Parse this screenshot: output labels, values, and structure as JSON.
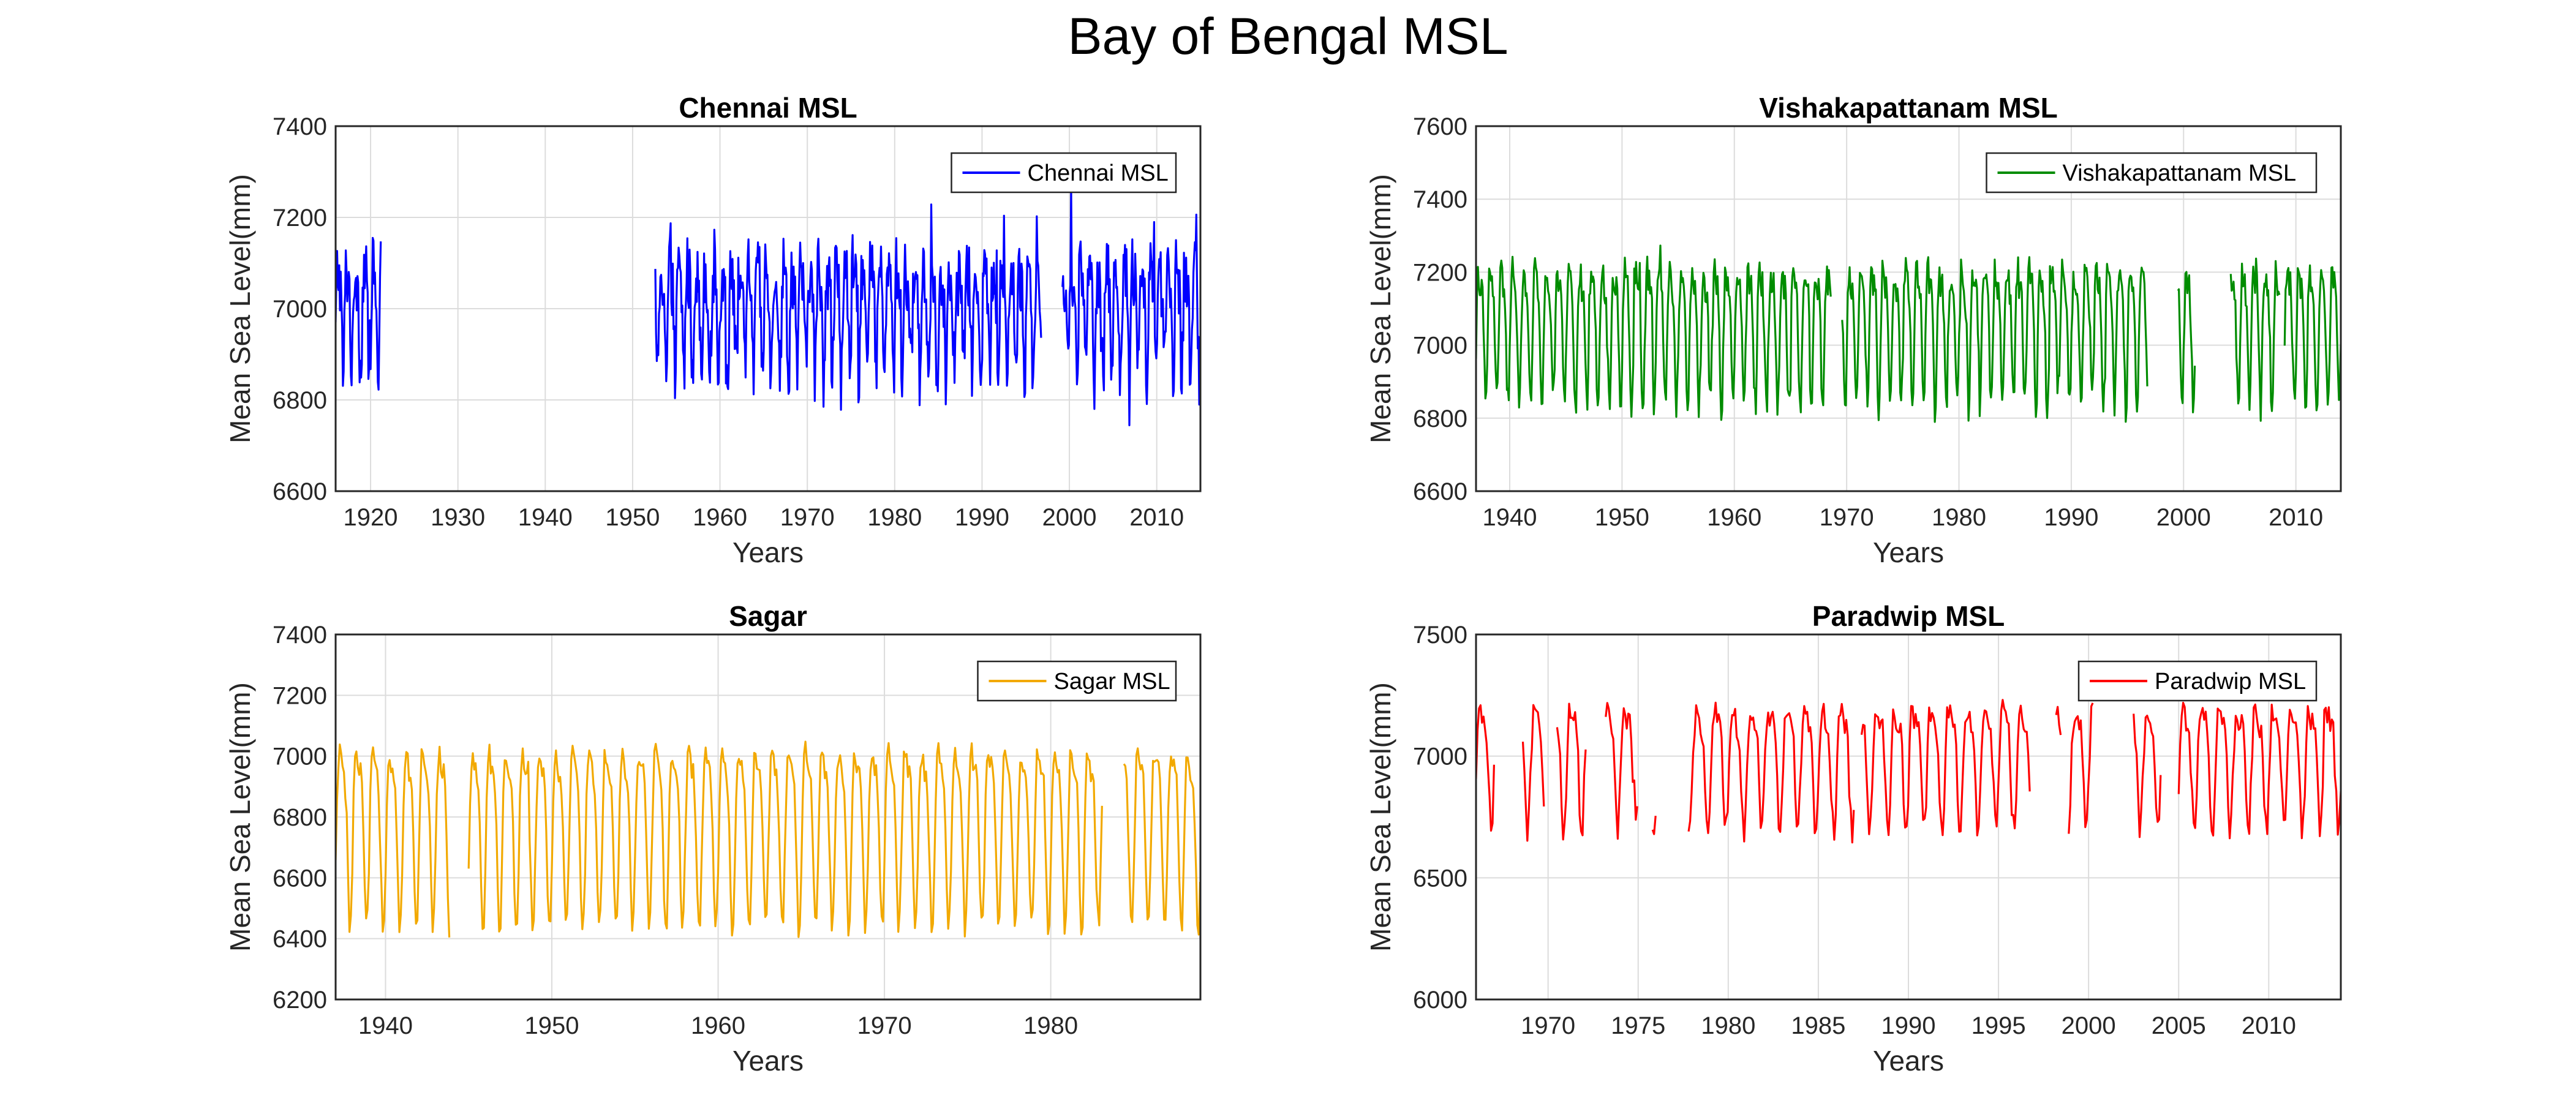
{
  "figure": {
    "title": "Bay of Bengal MSL"
  },
  "chart_data": [
    {
      "type": "line",
      "title": "Chennai MSL",
      "xlabel": "Years",
      "ylabel": "Mean Sea Level(mm)",
      "xlim": [
        1916,
        2015
      ],
      "ylim": [
        6600,
        7400
      ],
      "xticks": [
        1920,
        1930,
        1940,
        1950,
        1960,
        1970,
        1980,
        1990,
        2000,
        2010
      ],
      "yticks": [
        6600,
        6800,
        7000,
        7200,
        7400
      ],
      "grid": true,
      "legend": {
        "position": "top-right",
        "entries": [
          "Chennai MSL"
        ]
      },
      "series": [
        {
          "name": "Chennai MSL",
          "color": "#0000FF",
          "mean": 7000,
          "amplitude": 110,
          "noise": 75,
          "segments": [
            [
              1916.0,
              1921.2
            ],
            [
              1952.6,
              1996.8
            ],
            [
              1999.2,
              2015.0
            ]
          ]
        }
      ]
    },
    {
      "type": "line",
      "title": "Vishakapattanam MSL",
      "xlabel": "Years",
      "ylabel": "Mean Sea Level(mm)",
      "xlim": [
        1937,
        2014
      ],
      "ylim": [
        6600,
        7600
      ],
      "xticks": [
        1940,
        1950,
        1960,
        1970,
        1980,
        1990,
        2000,
        2010
      ],
      "yticks": [
        6600,
        6800,
        7000,
        7200,
        7400,
        7600
      ],
      "grid": true,
      "legend": {
        "position": "top-right",
        "entries": [
          "Vishakapattanam MSL"
        ]
      },
      "series": [
        {
          "name": "Vishakapattanam MSL",
          "color": "#008C00",
          "mean": 7060,
          "amplitude": 170,
          "noise": 45,
          "segments": [
            [
              1937.0,
              1968.6
            ],
            [
              1969.6,
              1996.8
            ],
            [
              1999.5,
              2001.0
            ],
            [
              2004.2,
              2008.6
            ],
            [
              2009.0,
              2014.0
            ]
          ]
        }
      ]
    },
    {
      "type": "line",
      "title": "Sagar",
      "xlabel": "Years",
      "ylabel": "Mean Sea Level(mm)",
      "xlim": [
        1937,
        1989
      ],
      "ylim": [
        6200,
        7400
      ],
      "xticks": [
        1940,
        1950,
        1960,
        1970,
        1980
      ],
      "yticks": [
        6200,
        6400,
        6600,
        6800,
        7000,
        7200,
        7400
      ],
      "grid": true,
      "legend": {
        "position": "top-right",
        "entries": [
          "Sagar MSL"
        ]
      },
      "series": [
        {
          "name": "Sagar MSL",
          "color": "#F2A900",
          "mean": 6790,
          "amplitude": 270,
          "noise": 35,
          "segments": [
            [
              1937.0,
              1943.9
            ],
            [
              1945.0,
              1983.1
            ],
            [
              1984.4,
              1989.0
            ]
          ]
        }
      ]
    },
    {
      "type": "line",
      "title": "Paradwip MSL",
      "xlabel": "Years",
      "ylabel": "Mean Sea Level(mm)",
      "xlim": [
        1966,
        2014
      ],
      "ylim": [
        6000,
        7500
      ],
      "xticks": [
        1970,
        1975,
        1980,
        1985,
        1990,
        1995,
        2000,
        2005,
        2010
      ],
      "yticks": [
        6000,
        6500,
        7000,
        7500
      ],
      "grid": true,
      "legend": {
        "position": "top-right",
        "entries": [
          "Paradwip MSL"
        ]
      },
      "series": [
        {
          "name": "Paradwip MSL",
          "color": "#FF0000",
          "mean": 7000,
          "amplitude": 230,
          "noise": 55,
          "segments": [
            [
              1966.0,
              1967.0
            ],
            [
              1968.6,
              1969.8
            ],
            [
              1970.5,
              1972.1
            ],
            [
              1973.2,
              1975.0
            ],
            [
              1975.8,
              1976.0
            ],
            [
              1977.8,
              1987.0
            ],
            [
              1987.4,
              1996.8
            ],
            [
              1998.2,
              1998.5
            ],
            [
              1998.9,
              2000.3
            ],
            [
              2002.5,
              2004.0
            ],
            [
              2005.0,
              2014.0
            ]
          ]
        }
      ]
    }
  ]
}
